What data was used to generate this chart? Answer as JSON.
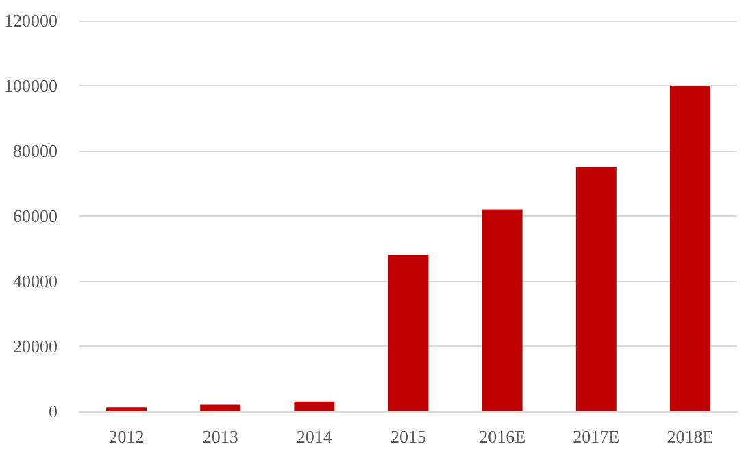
{
  "chart_data": {
    "type": "bar",
    "categories": [
      "2012",
      "2013",
      "2014",
      "2015",
      "2016E",
      "2017E",
      "2018E"
    ],
    "values": [
      1200,
      2000,
      3000,
      48000,
      62000,
      75000,
      100000
    ],
    "color": "#c00000",
    "ylim": [
      0,
      120000
    ],
    "yticks": [
      0,
      20000,
      40000,
      60000,
      80000,
      100000,
      120000
    ],
    "grid": "y"
  }
}
